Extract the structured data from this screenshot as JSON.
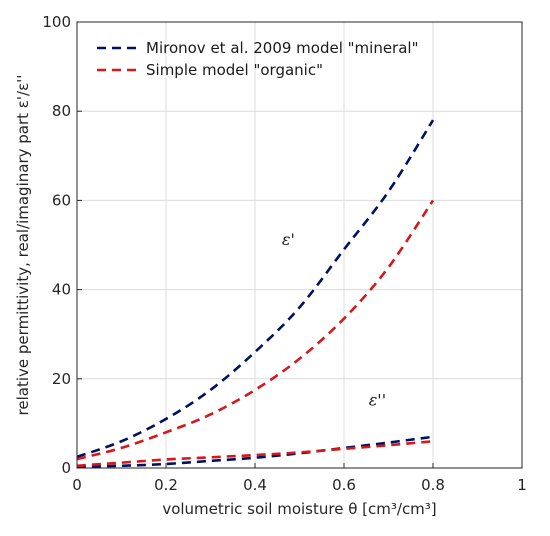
{
  "chart_data": {
    "type": "line",
    "xlabel": "volumetric soil moisture θ [cm³/cm³]",
    "ylabel": "relative permittivity, real/imaginary part ε'/ε''",
    "xlim": [
      0,
      1
    ],
    "ylim": [
      0,
      100
    ],
    "xticks": [
      "0",
      "0.2",
      "0.4",
      "0.6",
      "0.8",
      "1"
    ],
    "yticks": [
      "0",
      "20",
      "40",
      "60",
      "80",
      "100"
    ],
    "grid": true,
    "legend": {
      "placement": "top-left"
    },
    "series": [
      {
        "name": "Mironov et al. 2009 model \"mineral\"",
        "color": "#00125f",
        "part": "real",
        "x": [
          0,
          0.1,
          0.2,
          0.3,
          0.4,
          0.5,
          0.6,
          0.7,
          0.8
        ],
        "y": [
          2.5,
          6,
          11,
          17.5,
          26,
          36,
          49,
          62,
          78
        ]
      },
      {
        "name": "Simple model \"organic\"",
        "color": "#d4191c",
        "part": "real",
        "x": [
          0,
          0.1,
          0.2,
          0.3,
          0.4,
          0.5,
          0.6,
          0.7,
          0.8
        ],
        "y": [
          2,
          4.5,
          8,
          12,
          17.5,
          24.5,
          33.5,
          45,
          60
        ]
      },
      {
        "name": "",
        "color": "#00125f",
        "part": "imaginary",
        "x": [
          0,
          0.1,
          0.2,
          0.3,
          0.4,
          0.5,
          0.6,
          0.7,
          0.8
        ],
        "y": [
          0.3,
          0.5,
          0.9,
          1.6,
          2.3,
          3.3,
          4.5,
          5.7,
          7
        ]
      },
      {
        "name": "",
        "color": "#d4191c",
        "part": "imaginary",
        "x": [
          0,
          0.1,
          0.2,
          0.3,
          0.4,
          0.5,
          0.6,
          0.7,
          0.8
        ],
        "y": [
          0.5,
          1.2,
          1.9,
          2.4,
          2.9,
          3.5,
          4.3,
          5.1,
          6
        ]
      }
    ],
    "annotations": [
      {
        "text": "ε'",
        "x": 0.52,
        "y": 50
      },
      {
        "text": "ε''",
        "x": 0.72,
        "y": 14
      }
    ]
  }
}
